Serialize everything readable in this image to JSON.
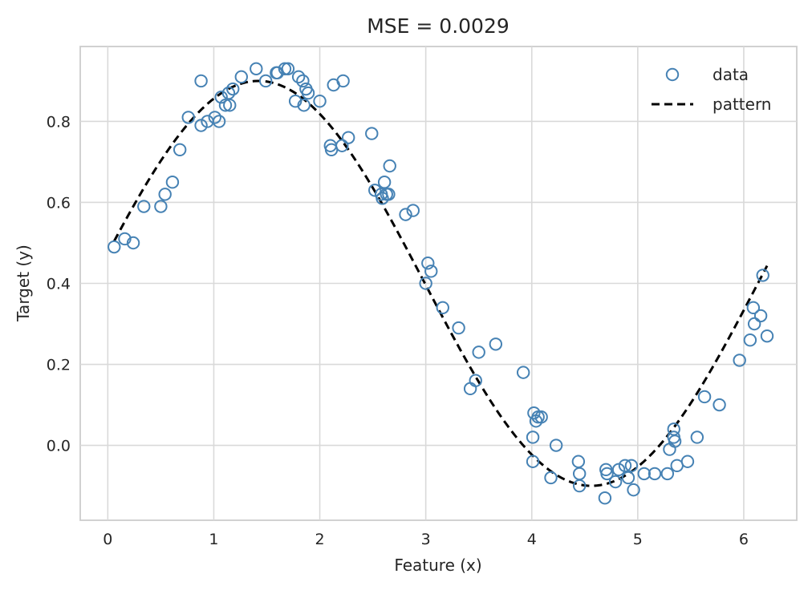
{
  "chart_data": {
    "type": "scatter",
    "title": "MSE = 0.0029",
    "xlabel": "Feature (x)",
    "ylabel": "Target (y)",
    "xlim": [
      -0.26,
      6.5
    ],
    "ylim": [
      -0.185,
      0.985
    ],
    "xticks": [
      0,
      1,
      2,
      3,
      4,
      5,
      6
    ],
    "yticks": [
      0.0,
      0.2,
      0.4,
      0.6,
      0.8
    ],
    "ytick_labels": [
      "0.0",
      "0.2",
      "0.4",
      "0.6",
      "0.8"
    ],
    "grid": true,
    "legend_position": "top-right",
    "colors": {
      "data": "#4682b4",
      "pattern": "#000000"
    },
    "series": [
      {
        "name": "data",
        "kind": "scatter",
        "points": [
          [
            0.06,
            0.49
          ],
          [
            0.16,
            0.51
          ],
          [
            0.24,
            0.5
          ],
          [
            0.34,
            0.59
          ],
          [
            0.5,
            0.59
          ],
          [
            0.54,
            0.62
          ],
          [
            0.61,
            0.65
          ],
          [
            0.68,
            0.73
          ],
          [
            0.76,
            0.81
          ],
          [
            0.88,
            0.9
          ],
          [
            0.88,
            0.79
          ],
          [
            0.94,
            0.8
          ],
          [
            1.01,
            0.81
          ],
          [
            1.05,
            0.8
          ],
          [
            1.07,
            0.86
          ],
          [
            1.11,
            0.84
          ],
          [
            1.14,
            0.87
          ],
          [
            1.15,
            0.84
          ],
          [
            1.18,
            0.88
          ],
          [
            1.26,
            0.91
          ],
          [
            1.4,
            0.93
          ],
          [
            1.49,
            0.9
          ],
          [
            1.59,
            0.92
          ],
          [
            1.6,
            0.92
          ],
          [
            1.67,
            0.93
          ],
          [
            1.7,
            0.93
          ],
          [
            1.77,
            0.85
          ],
          [
            1.8,
            0.91
          ],
          [
            1.84,
            0.9
          ],
          [
            1.85,
            0.84
          ],
          [
            1.87,
            0.88
          ],
          [
            1.89,
            0.87
          ],
          [
            2.0,
            0.85
          ],
          [
            2.1,
            0.74
          ],
          [
            2.11,
            0.73
          ],
          [
            2.13,
            0.89
          ],
          [
            2.21,
            0.74
          ],
          [
            2.22,
            0.9
          ],
          [
            2.27,
            0.76
          ],
          [
            2.49,
            0.77
          ],
          [
            2.52,
            0.63
          ],
          [
            2.58,
            0.62
          ],
          [
            2.59,
            0.61
          ],
          [
            2.61,
            0.65
          ],
          [
            2.63,
            0.62
          ],
          [
            2.65,
            0.62
          ],
          [
            2.66,
            0.69
          ],
          [
            2.81,
            0.57
          ],
          [
            2.88,
            0.58
          ],
          [
            3.0,
            0.4
          ],
          [
            3.02,
            0.45
          ],
          [
            3.05,
            0.43
          ],
          [
            3.16,
            0.34
          ],
          [
            3.31,
            0.29
          ],
          [
            3.42,
            0.14
          ],
          [
            3.47,
            0.16
          ],
          [
            3.5,
            0.23
          ],
          [
            3.66,
            0.25
          ],
          [
            3.92,
            0.18
          ],
          [
            4.01,
            -0.04
          ],
          [
            4.01,
            0.02
          ],
          [
            4.02,
            0.08
          ],
          [
            4.04,
            0.06
          ],
          [
            4.06,
            0.07
          ],
          [
            4.09,
            0.07
          ],
          [
            4.18,
            -0.08
          ],
          [
            4.23,
            0.0
          ],
          [
            4.44,
            -0.04
          ],
          [
            4.45,
            -0.1
          ],
          [
            4.45,
            -0.07
          ],
          [
            4.69,
            -0.13
          ],
          [
            4.7,
            -0.06
          ],
          [
            4.71,
            -0.07
          ],
          [
            4.79,
            -0.09
          ],
          [
            4.82,
            -0.06
          ],
          [
            4.88,
            -0.05
          ],
          [
            4.91,
            -0.08
          ],
          [
            4.94,
            -0.05
          ],
          [
            4.96,
            -0.11
          ],
          [
            5.06,
            -0.07
          ],
          [
            5.16,
            -0.07
          ],
          [
            5.28,
            -0.07
          ],
          [
            5.3,
            -0.01
          ],
          [
            5.34,
            0.04
          ],
          [
            5.34,
            0.02
          ],
          [
            5.35,
            0.01
          ],
          [
            5.37,
            -0.05
          ],
          [
            5.47,
            -0.04
          ],
          [
            5.56,
            0.02
          ],
          [
            5.63,
            0.12
          ],
          [
            5.77,
            0.1
          ],
          [
            5.96,
            0.21
          ],
          [
            6.06,
            0.26
          ],
          [
            6.09,
            0.34
          ],
          [
            6.1,
            0.3
          ],
          [
            6.16,
            0.32
          ],
          [
            6.18,
            0.42
          ],
          [
            6.22,
            0.27
          ]
        ]
      },
      {
        "name": "pattern",
        "kind": "line",
        "style": "dashed",
        "function": "0.4 + 0.5*sin(x + 0.15)",
        "x_range": [
          0.06,
          6.22
        ]
      }
    ]
  }
}
